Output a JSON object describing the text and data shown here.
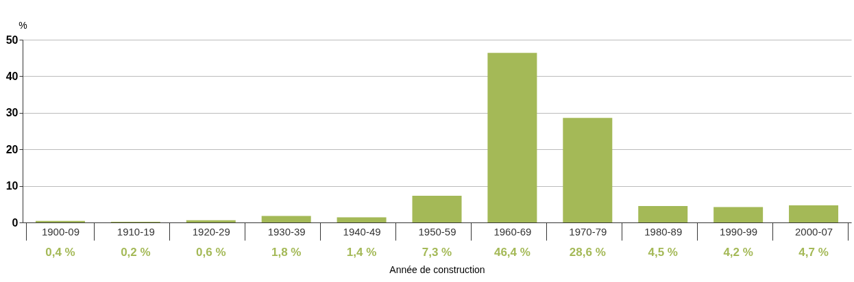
{
  "chart_data": {
    "type": "bar",
    "ylabel": "%",
    "xlabel": "Année de construction",
    "categories": [
      "1900-09",
      "1910-19",
      "1920-29",
      "1930-39",
      "1940-49",
      "1950-59",
      "1960-69",
      "1970-79",
      "1980-89",
      "1990-99",
      "2000-07"
    ],
    "values": [
      0.4,
      0.2,
      0.6,
      1.8,
      1.4,
      7.3,
      46.4,
      28.6,
      4.5,
      4.2,
      4.7
    ],
    "value_labels": [
      "0,4 %",
      "0,2 %",
      "0,6 %",
      "1,8 %",
      "1,4 %",
      "7,3 %",
      "46,4 %",
      "28,6 %",
      "4,5 %",
      "4,2 %",
      "4,7 %"
    ],
    "color": "#a4b957",
    "ylim": [
      0,
      50
    ],
    "yticks": [
      0,
      10,
      20,
      30,
      40,
      50
    ],
    "grid": "y"
  }
}
